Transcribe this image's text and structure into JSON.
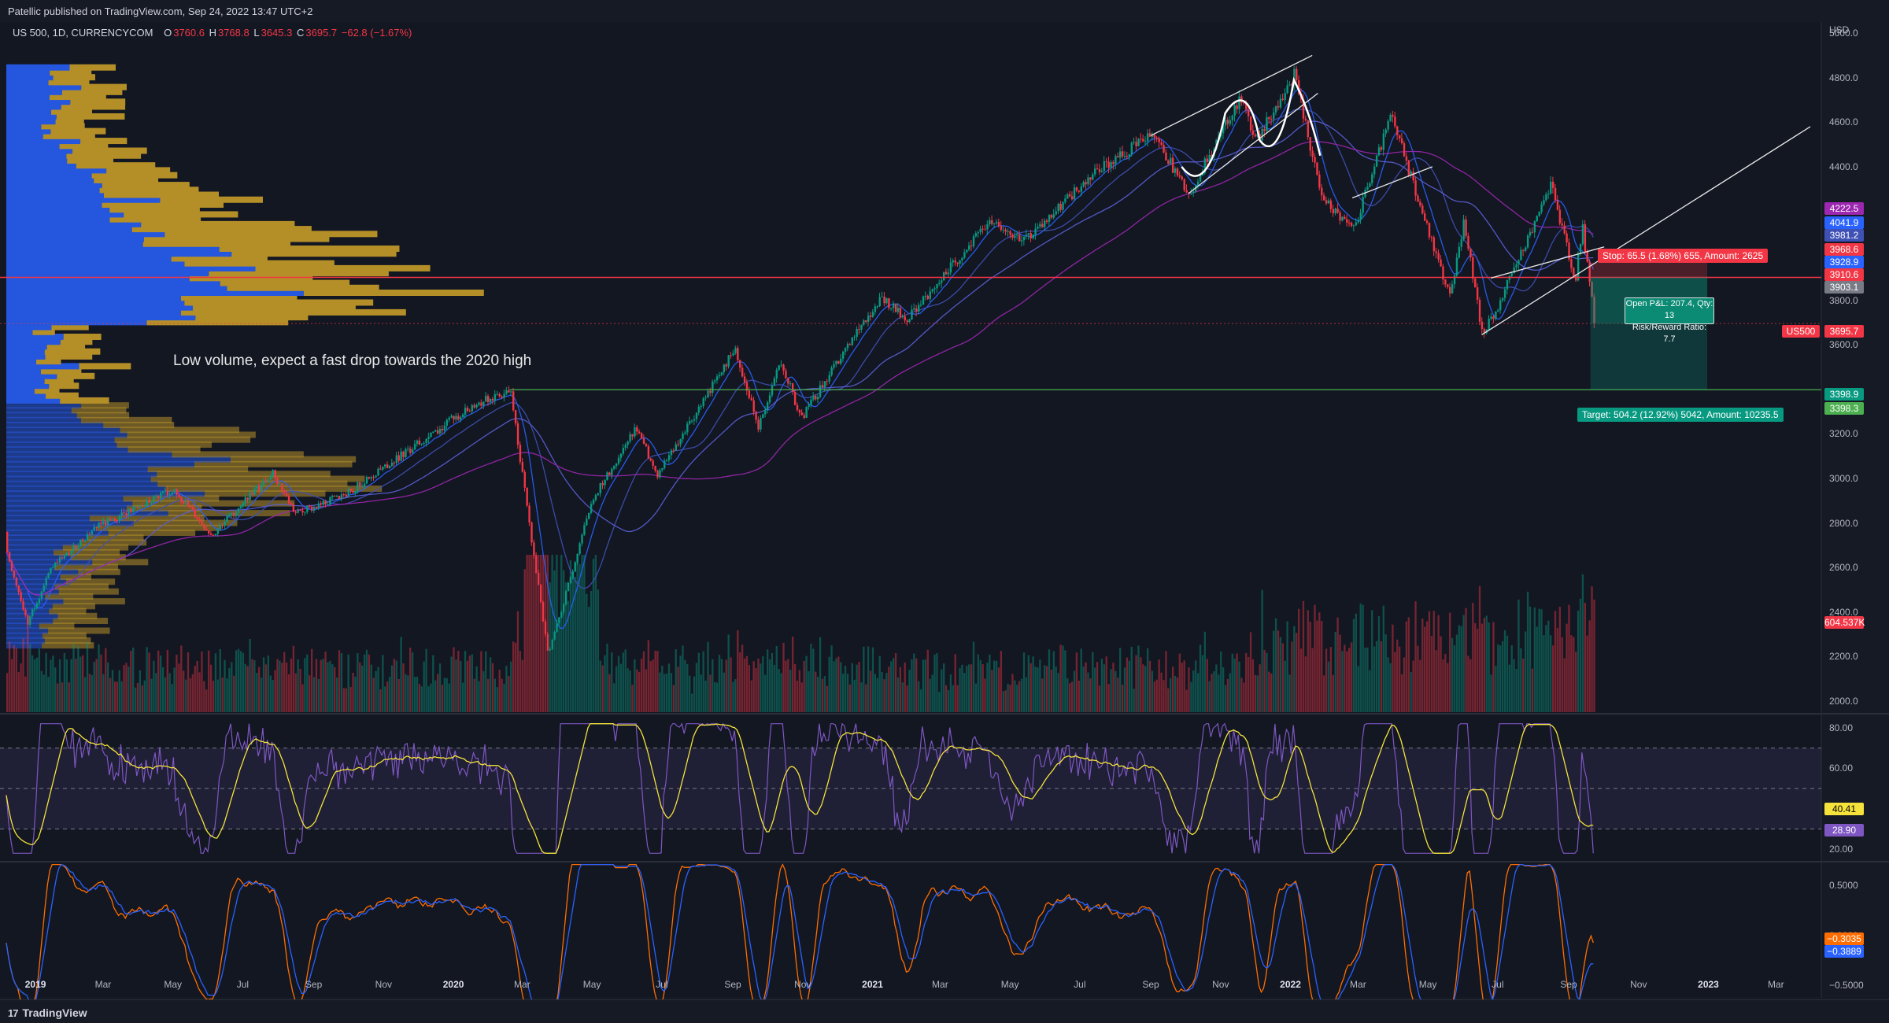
{
  "header": {
    "published_by": "Patellic published on TradingView.com, Sep 24, 2022 13:47 UTC+2"
  },
  "legend": {
    "symbol": "US 500, 1D, CURRENCYCOM",
    "o_label": "O",
    "o_value": "3760.6",
    "h_label": "H",
    "h_value": "3768.8",
    "l_label": "L",
    "l_value": "3645.3",
    "c_label": "C",
    "c_value": "3695.7",
    "change": "−62.8 (−1.67%)"
  },
  "annotations": {
    "note": "Low volume, expect a fast drop towards the 2020 high",
    "stop_label": "Stop: 65.5 (1.68%) 655, Amount: 2625",
    "pnl_line1": "Open P&L: 207.4, Qty: 13",
    "pnl_line2": "Risk/Reward Ratio: 7.7",
    "target_label": "Target: 504.2 (12.92%) 5042, Amount: 10235.5"
  },
  "price_axis": {
    "currency": "USD",
    "ticks": [
      "5000.0",
      "4800.0",
      "4600.0",
      "4400.0",
      "3800.0",
      "3600.0",
      "3200.0",
      "3000.0",
      "2800.0",
      "2600.0",
      "2400.0",
      "2200.0",
      "2000.0"
    ],
    "badges": [
      {
        "text": "4222.5",
        "color": "#9c27b0",
        "price": 4222.5
      },
      {
        "text": "4041.9",
        "color": "#2962ff",
        "price": 4041.9
      },
      {
        "text": "3981.2",
        "color": "#3f51b5",
        "price": 3981.2
      },
      {
        "text": "3968.6",
        "color": "#f23645",
        "price": 3968.6
      },
      {
        "text": "3928.9",
        "color": "#2962ff",
        "price": 3928.9
      },
      {
        "text": "3910.6",
        "color": "#f23645",
        "price": 3910.6
      },
      {
        "text": "3903.1",
        "color": "#787b86",
        "price": 3903.1
      },
      {
        "text": "3695.7",
        "color": "#f23645",
        "price": 3695.7
      },
      {
        "text": "3398.9",
        "color": "#089981",
        "price": 3398.9
      },
      {
        "text": "3398.3",
        "color": "#4caf50",
        "price": 3398.3
      },
      {
        "text": "604.537K",
        "color": "#f23645",
        "price": 2338
      }
    ],
    "symbol_badge": "US500"
  },
  "rsi_axis": {
    "ticks": [
      "80.00",
      "60.00",
      "20.00"
    ],
    "badges": [
      {
        "text": "40.41",
        "color": "#f5e33c",
        "text_color": "#000"
      },
      {
        "text": "28.90",
        "color": "#7e57c2",
        "text_color": "#fff"
      }
    ]
  },
  "osc_axis": {
    "ticks": [
      "0.5000",
      "0.0000",
      "−0.5000"
    ],
    "badges": [
      {
        "text": "−0.3035",
        "color": "#ff6d00"
      },
      {
        "text": "−0.3889",
        "color": "#2962ff"
      }
    ]
  },
  "time_axis": {
    "labels": [
      {
        "text": "2019",
        "year": true
      },
      {
        "text": "Mar",
        "year": false
      },
      {
        "text": "May",
        "year": false
      },
      {
        "text": "Jul",
        "year": false
      },
      {
        "text": "Sep",
        "year": false
      },
      {
        "text": "Nov",
        "year": false
      },
      {
        "text": "2020",
        "year": true
      },
      {
        "text": "Mar",
        "year": false
      },
      {
        "text": "May",
        "year": false
      },
      {
        "text": "Jul",
        "year": false
      },
      {
        "text": "Sep",
        "year": false
      },
      {
        "text": "Nov",
        "year": false
      },
      {
        "text": "2021",
        "year": true
      },
      {
        "text": "Mar",
        "year": false
      },
      {
        "text": "May",
        "year": false
      },
      {
        "text": "Jul",
        "year": false
      },
      {
        "text": "Sep",
        "year": false
      },
      {
        "text": "Nov",
        "year": false
      },
      {
        "text": "2022",
        "year": true
      },
      {
        "text": "Mar",
        "year": false
      },
      {
        "text": "May",
        "year": false
      },
      {
        "text": "Jul",
        "year": false
      },
      {
        "text": "Sep",
        "year": false
      },
      {
        "text": "Nov",
        "year": false
      },
      {
        "text": "2023",
        "year": true
      },
      {
        "text": "Mar",
        "year": false
      }
    ]
  },
  "footer": {
    "brand": "TradingView"
  },
  "colors": {
    "up": "#089981",
    "down": "#f23645",
    "volume_profile_up": "#2962ff",
    "volume_profile_down": "#d1a52a",
    "rsi": "#7e57c2",
    "rsi_ma": "#f5e33c",
    "osc_fast": "#ff6d00",
    "osc_slow": "#2962ff"
  },
  "chart_data": {
    "type": "line",
    "title": "",
    "xlabel": "",
    "ylabel": "",
    "x_range": [
      "2018-12-01",
      "2023-03-31"
    ],
    "ylim": [
      1950,
      5050
    ],
    "price_path": [
      [
        "2018-12-01",
        2760
      ],
      [
        "2018-12-24",
        2350
      ],
      [
        "2019-01-15",
        2600
      ],
      [
        "2019-02-25",
        2790
      ],
      [
        "2019-04-30",
        2950
      ],
      [
        "2019-06-03",
        2740
      ],
      [
        "2019-07-26",
        3025
      ],
      [
        "2019-08-15",
        2840
      ],
      [
        "2019-10-01",
        2940
      ],
      [
        "2019-11-29",
        3150
      ],
      [
        "2020-01-17",
        3330
      ],
      [
        "2020-02-19",
        3395
      ],
      [
        "2020-03-23",
        2200
      ],
      [
        "2020-04-30",
        2900
      ],
      [
        "2020-06-08",
        3230
      ],
      [
        "2020-06-26",
        3010
      ],
      [
        "2020-09-02",
        3580
      ],
      [
        "2020-09-23",
        3230
      ],
      [
        "2020-10-12",
        3530
      ],
      [
        "2020-10-30",
        3270
      ],
      [
        "2021-01-08",
        3820
      ],
      [
        "2021-01-29",
        3710
      ],
      [
        "2021-04-15",
        4170
      ],
      [
        "2021-05-12",
        4060
      ],
      [
        "2021-07-14",
        4380
      ],
      [
        "2021-09-02",
        4540
      ],
      [
        "2021-10-04",
        4280
      ],
      [
        "2021-11-18",
        4720
      ],
      [
        "2021-12-01",
        4510
      ],
      [
        "2022-01-04",
        4818
      ],
      [
        "2022-01-27",
        4270
      ],
      [
        "2022-02-24",
        4110
      ],
      [
        "2022-03-29",
        4630
      ],
      [
        "2022-05-20",
        3810
      ],
      [
        "2022-06-01",
        4160
      ],
      [
        "2022-06-17",
        3640
      ],
      [
        "2022-07-01",
        3780
      ],
      [
        "2022-08-16",
        4325
      ],
      [
        "2022-09-06",
        3880
      ],
      [
        "2022-09-12",
        4140
      ],
      [
        "2022-09-23",
        3695.7
      ]
    ],
    "levels": {
      "stop": 3968.6,
      "entry": 3903.1,
      "last": 3695.7,
      "target": 3398.9,
      "high_2020": 3398.3
    },
    "rsi": {
      "ylim": [
        15,
        85
      ],
      "upper": 70,
      "mid": 50,
      "lower": 30,
      "last": 28.9,
      "ma_last": 40.41
    },
    "oscillator": {
      "ylim": [
        -0.6,
        0.7
      ],
      "fast_last": -0.3035,
      "slow_last": -0.3889
    },
    "legend_position": "top-left"
  }
}
